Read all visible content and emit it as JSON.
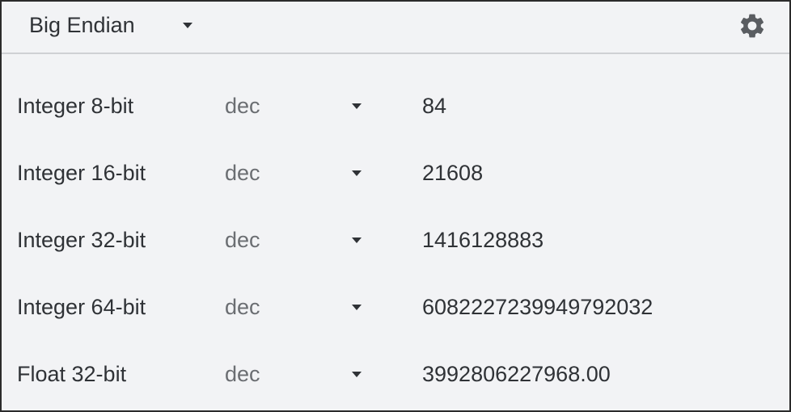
{
  "header": {
    "endianness": "Big Endian",
    "settings_icon": "gear-icon"
  },
  "rows": [
    {
      "label": "Integer 8-bit",
      "format": "dec",
      "value": "84"
    },
    {
      "label": "Integer 16-bit",
      "format": "dec",
      "value": "21608"
    },
    {
      "label": "Integer 32-bit",
      "format": "dec",
      "value": "1416128883"
    },
    {
      "label": "Integer 64-bit",
      "format": "dec",
      "value": "6082227239949792032"
    },
    {
      "label": "Float 32-bit",
      "format": "dec",
      "value": "3992806227968.00"
    }
  ]
}
